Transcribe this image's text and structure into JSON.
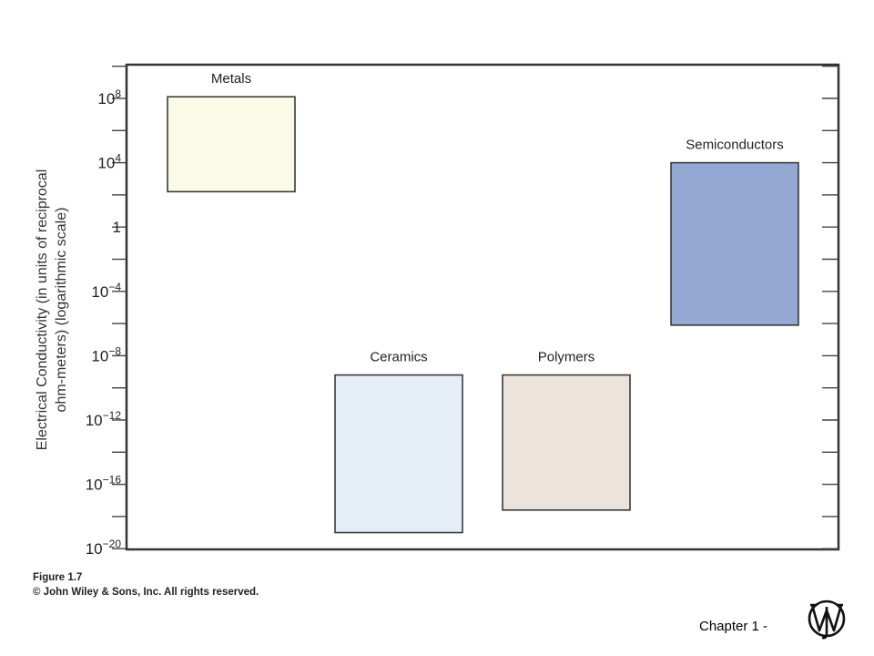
{
  "chart_data": {
    "type": "range-bar",
    "ylabel_lines": [
      "Electrical Conductivity (in units of reciprocal",
      "ohm-meters) (logarithmic scale)"
    ],
    "yscale": "log",
    "ylim_exponent": [
      -20,
      11
    ],
    "yticks": [
      {
        "exp": 8,
        "base": "10",
        "sup": "8"
      },
      {
        "exp": 4,
        "base": "10",
        "sup": "4"
      },
      {
        "exp": 0,
        "base": "1",
        "sup": ""
      },
      {
        "exp": -4,
        "base": "10",
        "sup": "−4"
      },
      {
        "exp": -8,
        "base": "10",
        "sup": "−8"
      },
      {
        "exp": -12,
        "base": "10",
        "sup": "−12"
      },
      {
        "exp": -16,
        "base": "10",
        "sup": "−16"
      },
      {
        "exp": -20,
        "base": "10",
        "sup": "−20"
      }
    ],
    "categories": [
      "Metals",
      "Ceramics",
      "Polymers",
      "Semiconductors"
    ],
    "series": [
      {
        "category": "Metals",
        "low_exp": 2.2,
        "high_exp": 8.1,
        "color": "#fbfae6"
      },
      {
        "category": "Ceramics",
        "low_exp": -19.0,
        "high_exp": -9.2,
        "color": "#e5eef6"
      },
      {
        "category": "Polymers",
        "low_exp": -17.6,
        "high_exp": -9.2,
        "color": "#ece4dc"
      },
      {
        "category": "Semiconductors",
        "low_exp": -6.1,
        "high_exp": 4.0,
        "color": "#93a8d3"
      }
    ],
    "grid": false
  },
  "caption": {
    "figure": "Figure 1.7",
    "copyright": "© John Wiley & Sons, Inc. All rights reserved."
  },
  "footer": {
    "chapter": "Chapter 1 -"
  }
}
